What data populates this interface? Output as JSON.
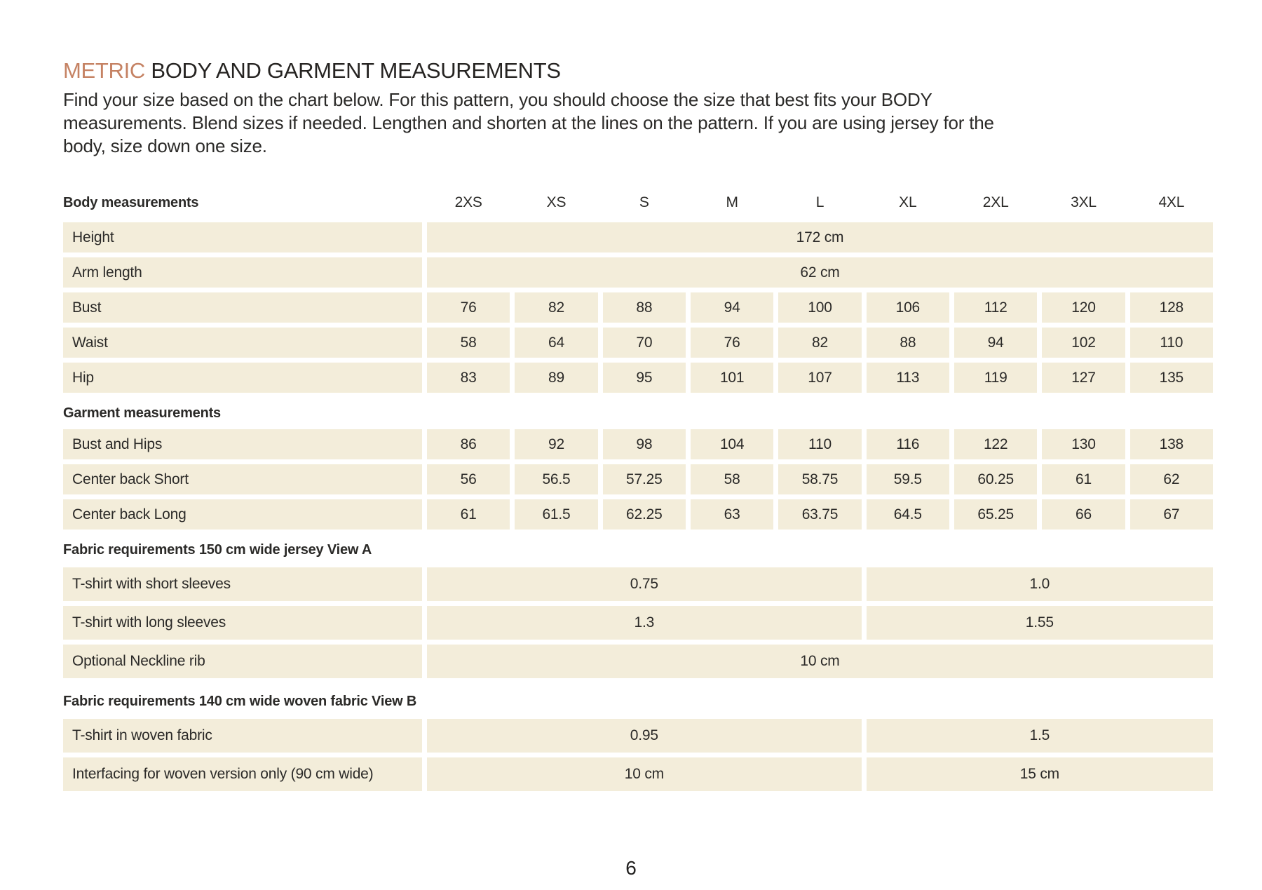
{
  "colors": {
    "accent": "#c58263",
    "cream": "#f3edda",
    "ink": "#2b2a28",
    "paper": "#ffffff"
  },
  "header": {
    "title_accent": "METRIC",
    "title_rest": " BODY AND GARMENT MEASUREMENTS",
    "intro_lines": [
      "Find your size based on the chart below. For this pattern, you should choose the size that best fits your BODY",
      "measurements. Blend sizes if needed. Lengthen and shorten at the lines on the pattern. If you are using jersey for the",
      "body, size down one size."
    ]
  },
  "table": {
    "header": {
      "label": "Body measurements",
      "sizes": [
        "2XS",
        "XS",
        "S",
        "M",
        "L",
        "XL",
        "2XL",
        "3XL",
        "4XL"
      ]
    },
    "sections": {
      "garment": "Garment measurements",
      "fabric_a": "Fabric requirements 150 cm wide jersey View A",
      "fabric_b": "Fabric requirements 140 cm wide woven fabric View B"
    },
    "rows": {
      "height": {
        "label": "Height",
        "value": "172 cm"
      },
      "arm_length": {
        "label": "Arm length",
        "value": "62 cm"
      },
      "bust": {
        "label": "Bust",
        "values": [
          "76",
          "82",
          "88",
          "94",
          "100",
          "106",
          "112",
          "120",
          "128"
        ]
      },
      "waist": {
        "label": "Waist",
        "values": [
          "58",
          "64",
          "70",
          "76",
          "82",
          "88",
          "94",
          "102",
          "110"
        ]
      },
      "hip": {
        "label": "Hip",
        "values": [
          "83",
          "89",
          "95",
          "101",
          "107",
          "113",
          "119",
          "127",
          "135"
        ]
      },
      "bust_and_hips": {
        "label": "Bust and Hips",
        "values": [
          "86",
          "92",
          "98",
          "104",
          "110",
          "116",
          "122",
          "130",
          "138"
        ]
      },
      "center_back_short": {
        "label": "Center back Short",
        "values": [
          "56",
          "56.5",
          "57.25",
          "58",
          "58.75",
          "59.5",
          "60.25",
          "61",
          "62"
        ]
      },
      "center_back_long": {
        "label": "Center back Long",
        "values": [
          "61",
          "61.5",
          "62.25",
          "63",
          "63.75",
          "64.5",
          "65.25",
          "66",
          "67"
        ]
      },
      "tshirt_short_sleeves": {
        "label": "T-shirt with short sleeves",
        "values": [
          "0.75",
          "1.0"
        ]
      },
      "tshirt_long_sleeves": {
        "label": "T-shirt with long sleeves",
        "values": [
          "1.3",
          "1.55"
        ]
      },
      "neckline_rib": {
        "label": "Optional Neckline rib",
        "value": "10 cm"
      },
      "tshirt_woven": {
        "label": "T-shirt in woven fabric",
        "values": [
          "0.95",
          "1.5"
        ]
      },
      "interfacing": {
        "label": "Interfacing for woven version only (90 cm wide)",
        "values": [
          "10 cm",
          "15 cm"
        ]
      }
    }
  },
  "footer": {
    "page_number": "6"
  }
}
